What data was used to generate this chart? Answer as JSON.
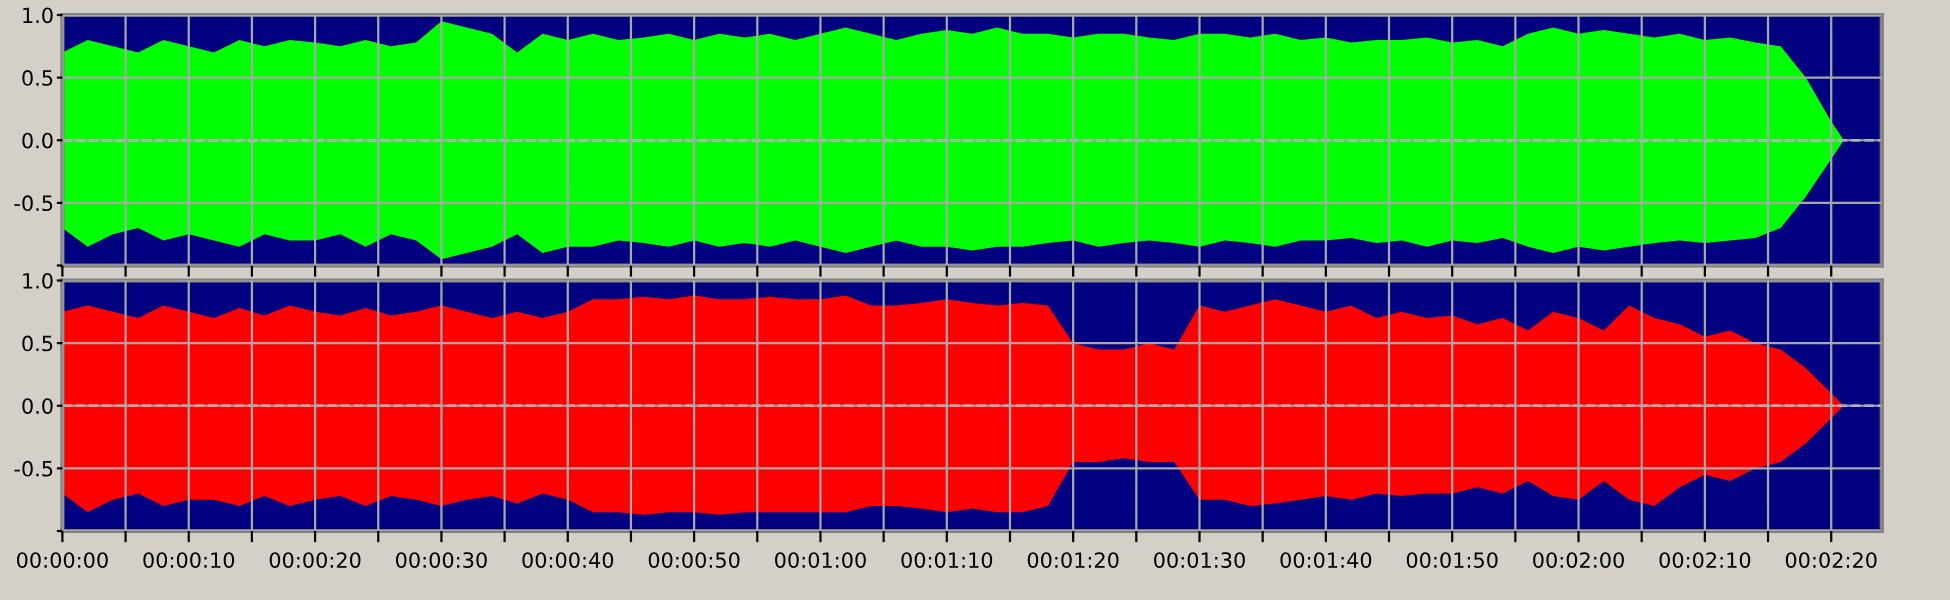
{
  "chart_data": [
    {
      "type": "area",
      "x": [
        0,
        2,
        4,
        6,
        8,
        10,
        12,
        14,
        16,
        18,
        20,
        22,
        24,
        26,
        28,
        30,
        32,
        34,
        36,
        38,
        40,
        42,
        44,
        46,
        48,
        50,
        52,
        54,
        56,
        58,
        60,
        62,
        64,
        66,
        68,
        70,
        72,
        74,
        76,
        78,
        80,
        82,
        84,
        86,
        88,
        90,
        92,
        94,
        96,
        98,
        100,
        102,
        104,
        106,
        108,
        110,
        112,
        114,
        116,
        118,
        120,
        122,
        124,
        126,
        128,
        130,
        132,
        134,
        136,
        138,
        140,
        141,
        144
      ],
      "series": [
        {
          "color": "#00ff00",
          "values": [
            0.7,
            0.8,
            0.75,
            0.7,
            0.8,
            0.75,
            0.7,
            0.8,
            0.75,
            0.8,
            0.78,
            0.75,
            0.8,
            0.75,
            0.78,
            0.95,
            0.9,
            0.85,
            0.7,
            0.85,
            0.8,
            0.85,
            0.8,
            0.82,
            0.85,
            0.8,
            0.85,
            0.82,
            0.85,
            0.8,
            0.85,
            0.9,
            0.85,
            0.8,
            0.85,
            0.88,
            0.85,
            0.9,
            0.85,
            0.85,
            0.82,
            0.85,
            0.85,
            0.82,
            0.8,
            0.85,
            0.85,
            0.82,
            0.85,
            0.8,
            0.82,
            0.78,
            0.8,
            0.8,
            0.82,
            0.78,
            0.8,
            0.75,
            0.85,
            0.9,
            0.85,
            0.88,
            0.85,
            0.82,
            0.85,
            0.8,
            0.82,
            0.78,
            0.75,
            0.5,
            0.15,
            0,
            0
          ]
        },
        {
          "color": "#00ff00",
          "values": [
            -0.7,
            -0.85,
            -0.75,
            -0.7,
            -0.8,
            -0.75,
            -0.8,
            -0.85,
            -0.75,
            -0.8,
            -0.8,
            -0.75,
            -0.85,
            -0.75,
            -0.8,
            -0.95,
            -0.9,
            -0.85,
            -0.75,
            -0.9,
            -0.85,
            -0.85,
            -0.8,
            -0.82,
            -0.85,
            -0.8,
            -0.85,
            -0.82,
            -0.85,
            -0.8,
            -0.85,
            -0.9,
            -0.85,
            -0.8,
            -0.85,
            -0.85,
            -0.88,
            -0.85,
            -0.85,
            -0.82,
            -0.8,
            -0.85,
            -0.82,
            -0.8,
            -0.82,
            -0.85,
            -0.8,
            -0.82,
            -0.85,
            -0.8,
            -0.8,
            -0.78,
            -0.82,
            -0.8,
            -0.85,
            -0.8,
            -0.82,
            -0.78,
            -0.85,
            -0.9,
            -0.85,
            -0.88,
            -0.85,
            -0.82,
            -0.8,
            -0.82,
            -0.8,
            -0.78,
            -0.7,
            -0.45,
            -0.15,
            0,
            0
          ]
        }
      ],
      "xlim": [
        0,
        144
      ],
      "xticks": [
        {
          "value": 0,
          "label": null
        },
        {
          "value": 5,
          "label": null
        },
        {
          "value": 10,
          "label": null
        },
        {
          "value": 15,
          "label": null
        },
        {
          "value": 20,
          "label": null
        },
        {
          "value": 25,
          "label": null
        },
        {
          "value": 30,
          "label": null
        },
        {
          "value": 35,
          "label": null
        },
        {
          "value": 40,
          "label": null
        },
        {
          "value": 45,
          "label": null
        },
        {
          "value": 50,
          "label": null
        },
        {
          "value": 55,
          "label": null
        },
        {
          "value": 60,
          "label": null
        },
        {
          "value": 65,
          "label": null
        },
        {
          "value": 70,
          "label": null
        },
        {
          "value": 75,
          "label": null
        },
        {
          "value": 80,
          "label": null
        },
        {
          "value": 85,
          "label": null
        },
        {
          "value": 90,
          "label": null
        },
        {
          "value": 95,
          "label": null
        },
        {
          "value": 100,
          "label": null
        },
        {
          "value": 105,
          "label": null
        },
        {
          "value": 110,
          "label": null
        },
        {
          "value": 115,
          "label": null
        },
        {
          "value": 120,
          "label": null
        },
        {
          "value": 125,
          "label": null
        },
        {
          "value": 130,
          "label": null
        },
        {
          "value": 135,
          "label": null
        },
        {
          "value": 140,
          "label": null
        }
      ],
      "ylim": [
        -1.0,
        1.0
      ],
      "yticks": [
        {
          "value": -1.0,
          "label": null
        },
        {
          "value": -0.5,
          "label": "-0.5"
        },
        {
          "value": 0.0,
          "label": "0.0"
        },
        {
          "value": 0.5,
          "label": "0.5"
        },
        {
          "value": 1.0,
          "label": "1.0"
        }
      ],
      "ref_lines": [
        {
          "axis": "y",
          "value": 0,
          "color": "#e8e8e8",
          "line_style": "dashed"
        }
      ],
      "bands": [
        {
          "axis": "y",
          "from": -1.0,
          "to": 1.0,
          "color": "#000080"
        }
      ],
      "grid": true,
      "tick_labels": "y"
    },
    {
      "type": "area",
      "x": [
        0,
        2,
        4,
        6,
        8,
        10,
        12,
        14,
        16,
        18,
        20,
        22,
        24,
        26,
        28,
        30,
        32,
        34,
        36,
        38,
        40,
        42,
        44,
        46,
        48,
        50,
        52,
        54,
        56,
        58,
        60,
        62,
        64,
        66,
        68,
        70,
        72,
        74,
        76,
        78,
        80,
        82,
        84,
        86,
        88,
        90,
        92,
        94,
        96,
        98,
        100,
        102,
        104,
        106,
        108,
        110,
        112,
        114,
        116,
        118,
        120,
        122,
        124,
        126,
        128,
        130,
        132,
        134,
        136,
        138,
        140,
        141,
        144
      ],
      "series": [
        {
          "color": "#ff0000",
          "values": [
            0.75,
            0.8,
            0.75,
            0.7,
            0.8,
            0.75,
            0.7,
            0.78,
            0.72,
            0.8,
            0.75,
            0.72,
            0.78,
            0.72,
            0.75,
            0.8,
            0.75,
            0.7,
            0.75,
            0.7,
            0.75,
            0.85,
            0.85,
            0.87,
            0.85,
            0.88,
            0.85,
            0.85,
            0.87,
            0.85,
            0.85,
            0.88,
            0.8,
            0.8,
            0.82,
            0.85,
            0.82,
            0.8,
            0.82,
            0.8,
            0.5,
            0.45,
            0.45,
            0.5,
            0.45,
            0.8,
            0.75,
            0.8,
            0.85,
            0.8,
            0.75,
            0.8,
            0.7,
            0.75,
            0.7,
            0.72,
            0.65,
            0.7,
            0.6,
            0.75,
            0.7,
            0.6,
            0.8,
            0.7,
            0.65,
            0.55,
            0.6,
            0.5,
            0.45,
            0.3,
            0.1,
            0,
            0
          ]
        },
        {
          "color": "#ff0000",
          "values": [
            -0.7,
            -0.85,
            -0.75,
            -0.7,
            -0.8,
            -0.75,
            -0.75,
            -0.8,
            -0.72,
            -0.8,
            -0.75,
            -0.72,
            -0.8,
            -0.72,
            -0.75,
            -0.8,
            -0.75,
            -0.72,
            -0.78,
            -0.7,
            -0.75,
            -0.85,
            -0.85,
            -0.87,
            -0.85,
            -0.85,
            -0.87,
            -0.85,
            -0.85,
            -0.85,
            -0.85,
            -0.85,
            -0.8,
            -0.8,
            -0.82,
            -0.85,
            -0.82,
            -0.85,
            -0.85,
            -0.8,
            -0.45,
            -0.45,
            -0.42,
            -0.45,
            -0.45,
            -0.75,
            -0.75,
            -0.8,
            -0.78,
            -0.75,
            -0.72,
            -0.75,
            -0.7,
            -0.72,
            -0.7,
            -0.7,
            -0.65,
            -0.7,
            -0.6,
            -0.72,
            -0.75,
            -0.6,
            -0.75,
            -0.8,
            -0.65,
            -0.55,
            -0.6,
            -0.5,
            -0.45,
            -0.3,
            -0.1,
            0,
            0
          ]
        }
      ],
      "xlim": [
        0,
        144
      ],
      "xticks": [
        {
          "value": 0,
          "label": "00:00:00"
        },
        {
          "value": 5,
          "label": null
        },
        {
          "value": 10,
          "label": "00:00:10"
        },
        {
          "value": 15,
          "label": null
        },
        {
          "value": 20,
          "label": "00:00:20"
        },
        {
          "value": 25,
          "label": null
        },
        {
          "value": 30,
          "label": "00:00:30"
        },
        {
          "value": 35,
          "label": null
        },
        {
          "value": 40,
          "label": "00:00:40"
        },
        {
          "value": 45,
          "label": null
        },
        {
          "value": 50,
          "label": "00:00:50"
        },
        {
          "value": 55,
          "label": null
        },
        {
          "value": 60,
          "label": "00:01:00"
        },
        {
          "value": 65,
          "label": null
        },
        {
          "value": 70,
          "label": "00:01:10"
        },
        {
          "value": 75,
          "label": null
        },
        {
          "value": 80,
          "label": "00:01:20"
        },
        {
          "value": 85,
          "label": null
        },
        {
          "value": 90,
          "label": "00:01:30"
        },
        {
          "value": 95,
          "label": null
        },
        {
          "value": 100,
          "label": "00:01:40"
        },
        {
          "value": 105,
          "label": null
        },
        {
          "value": 110,
          "label": "00:01:50"
        },
        {
          "value": 115,
          "label": null
        },
        {
          "value": 120,
          "label": "00:02:00"
        },
        {
          "value": 125,
          "label": null
        },
        {
          "value": 130,
          "label": "00:02:10"
        },
        {
          "value": 135,
          "label": null
        },
        {
          "value": 140,
          "label": "00:02:20"
        }
      ],
      "ylim": [
        -1.0,
        1.0
      ],
      "yticks": [
        {
          "value": -1.0,
          "label": null
        },
        {
          "value": -0.5,
          "label": "-0.5"
        },
        {
          "value": 0.0,
          "label": "0.0"
        },
        {
          "value": 0.5,
          "label": "0.5"
        },
        {
          "value": 1.0,
          "label": "1.0"
        }
      ],
      "ref_lines": [
        {
          "axis": "y",
          "value": 0,
          "color": "#e8e8e8",
          "line_style": "dashed"
        }
      ],
      "bands": [
        {
          "axis": "y",
          "from": -1.0,
          "to": 1.0,
          "color": "#000080"
        }
      ],
      "grid": true
    }
  ]
}
